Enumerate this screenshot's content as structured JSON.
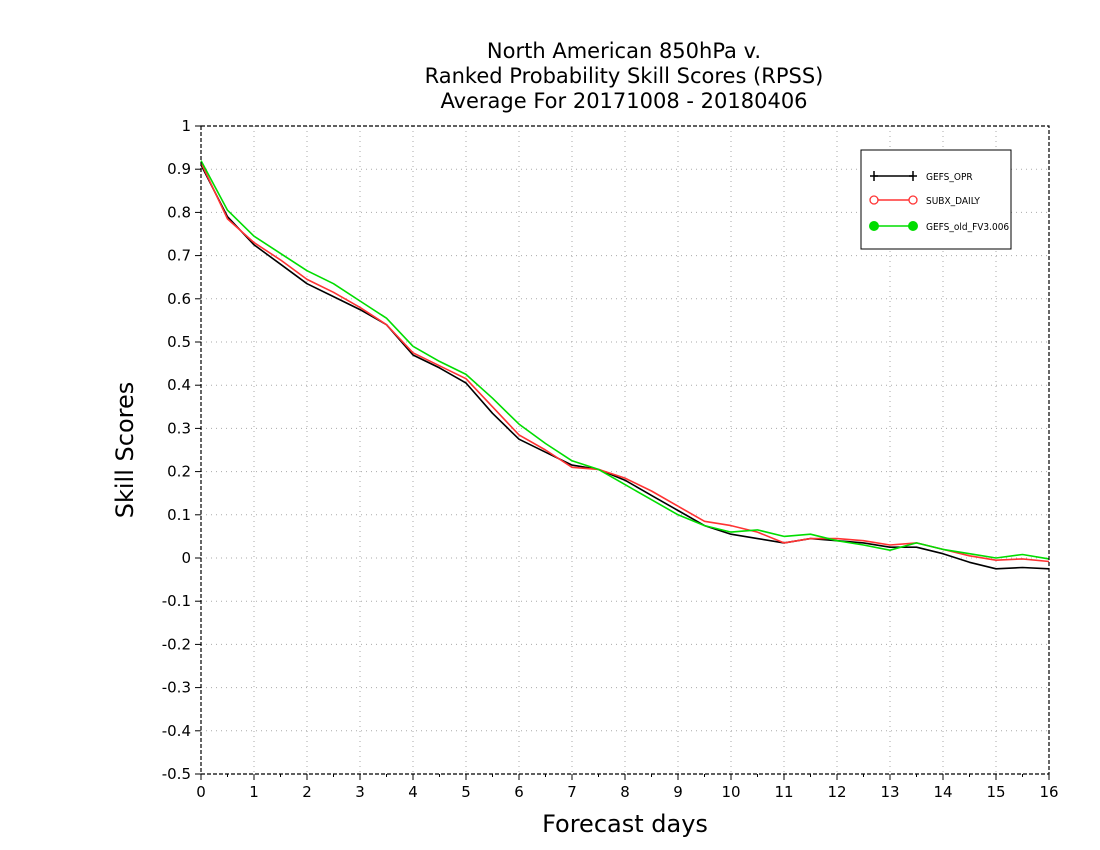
{
  "chart_data": {
    "type": "line",
    "title": [
      "North American 850hPa v.",
      "Ranked Probability Skill Scores (RPSS)",
      "Average For 20171008 - 20180406"
    ],
    "xlabel": "Forecast days",
    "ylabel": "Skill Scores",
    "xlim": [
      0,
      16
    ],
    "ylim": [
      -0.5,
      1
    ],
    "xticks": [
      0,
      1,
      2,
      3,
      4,
      5,
      6,
      7,
      8,
      9,
      10,
      11,
      12,
      13,
      14,
      15,
      16
    ],
    "yticks": [
      -0.5,
      -0.4,
      -0.3,
      -0.2,
      -0.1,
      0,
      0.1,
      0.2,
      0.3,
      0.4,
      0.5,
      0.6,
      0.7,
      0.8,
      0.9,
      1
    ],
    "grid": true,
    "legend_position": "top-right",
    "x": [
      0,
      0.5,
      1,
      1.5,
      2,
      2.5,
      3,
      3.5,
      4,
      4.5,
      5,
      5.5,
      6,
      6.5,
      7,
      7.5,
      8,
      8.5,
      9,
      9.5,
      10,
      10.5,
      11,
      11.5,
      12,
      12.5,
      13,
      13.5,
      14,
      14.5,
      15,
      15.5,
      16
    ],
    "series": [
      {
        "name": "GEFS_OPR",
        "color": "#000000",
        "values": [
          0.91,
          0.79,
          0.725,
          0.68,
          0.635,
          0.605,
          0.575,
          0.54,
          0.47,
          0.44,
          0.405,
          0.335,
          0.275,
          0.245,
          0.215,
          0.205,
          0.18,
          0.145,
          0.11,
          0.075,
          0.055,
          0.045,
          0.035,
          0.045,
          0.04,
          0.035,
          0.025,
          0.025,
          0.01,
          -0.01,
          -0.025,
          -0.022,
          -0.025
        ]
      },
      {
        "name": "SUBX_DAILY",
        "color": "#ff3333",
        "values": [
          0.915,
          0.785,
          0.73,
          0.69,
          0.645,
          0.615,
          0.58,
          0.54,
          0.475,
          0.445,
          0.415,
          0.35,
          0.285,
          0.25,
          0.21,
          0.205,
          0.185,
          0.155,
          0.12,
          0.085,
          0.075,
          0.06,
          0.035,
          0.045,
          0.045,
          0.04,
          0.03,
          0.035,
          0.02,
          0.005,
          -0.005,
          -0.002,
          -0.008
        ]
      },
      {
        "name": "GEFS_old_FV3.006",
        "color": "#00dd00",
        "values": [
          0.92,
          0.805,
          0.745,
          0.705,
          0.665,
          0.635,
          0.595,
          0.555,
          0.49,
          0.455,
          0.425,
          0.37,
          0.31,
          0.265,
          0.225,
          0.205,
          0.17,
          0.135,
          0.1,
          0.075,
          0.06,
          0.065,
          0.05,
          0.055,
          0.04,
          0.03,
          0.018,
          0.035,
          0.02,
          0.01,
          0.0,
          0.008,
          -0.002
        ]
      }
    ]
  }
}
